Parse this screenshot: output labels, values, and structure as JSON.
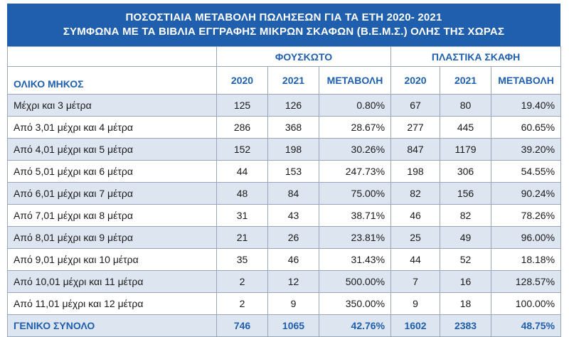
{
  "title": {
    "line1": "ΠΟΣΟΣΤΙΑΙΑ ΜΕΤΑΒΟΛΗ ΠΩΛΗΣΕΩΝ ΓΙΑ ΤΑ ΕΤΗ 2020- 2021",
    "line2": "ΣΥΜΦΩΝΑ ΜΕ ΤΑ ΒΙΒΛΙΑ ΕΓΓΡΑΦΗΣ ΜΙΚΡΩΝ ΣΚΑΦΩΝ (Β.Ε.Μ.Σ.) ΟΛΗΣ ΤΗΣ ΧΩΡΑΣ"
  },
  "groups": {
    "inflatable": "ΦΟΥΣΚΩΤΟ",
    "plastic": "ΠΛΑΣΤΙΚΑ ΣΚΑΦΗ"
  },
  "headers": {
    "length": "ΟΛΙΚΟ ΜΗΚΟΣ",
    "inf_2020": "2020",
    "inf_2021": "2021",
    "inf_change": "ΜΕΤΑΒΟΛΗ",
    "pla_2020": "2020",
    "pla_2021": "2021",
    "pla_change": "ΜΕΤΑΒΟΛΗ"
  },
  "rows": [
    [
      "Μέχρι και 3 μέτρα",
      "125",
      "126",
      "0.80%",
      "67",
      "80",
      "19.40%"
    ],
    [
      "Από 3,01 μέχρι και 4 μέτρα",
      "286",
      "368",
      "28.67%",
      "277",
      "445",
      "60.65%"
    ],
    [
      "Από 4,01 μέχρι και 5 μέτρα",
      "152",
      "198",
      "30.26%",
      "847",
      "1179",
      "39.20%"
    ],
    [
      "Από 5,01 μέχρι και 6 μέτρα",
      "44",
      "153",
      "247.73%",
      "198",
      "306",
      "54.55%"
    ],
    [
      "Από 6,01 μέχρι και 7 μέτρα",
      "48",
      "84",
      "75.00%",
      "82",
      "156",
      "90.24%"
    ],
    [
      "Από 7,01 μέχρι και 8 μέτρα",
      "31",
      "43",
      "38.71%",
      "46",
      "82",
      "78.26%"
    ],
    [
      "Από 8,01 μέχρι και 9 μέτρα",
      "21",
      "26",
      "23.81%",
      "25",
      "49",
      "96.00%"
    ],
    [
      "Από 9,01 μέχρι και 10 μέτρα",
      "35",
      "46",
      "31.43%",
      "44",
      "52",
      "18.18%"
    ],
    [
      "Από 10,01 μέχρι και 11 μέτρα",
      "2",
      "12",
      "500.00%",
      "7",
      "16",
      "128.57%"
    ],
    [
      "Από 11,01 μέχρι και 12 μέτρα",
      "2",
      "9",
      "350.00%",
      "9",
      "18",
      "100.00%"
    ]
  ],
  "total": [
    "ΓΕΝΙΚΟ ΣΥΝΟΛΟ",
    "746",
    "1065",
    "42.76%",
    "1602",
    "2383",
    "48.75%"
  ],
  "colors": {
    "accent": "#1f5fae",
    "row_shade": "#dde5f0"
  }
}
